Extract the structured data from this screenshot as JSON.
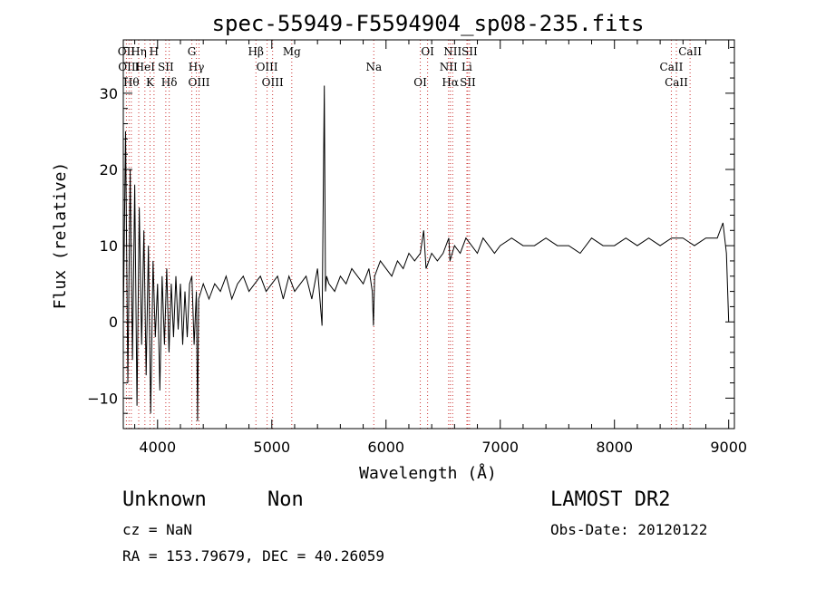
{
  "chart_data": {
    "type": "line",
    "title": "spec-55949-F5594904_sp08-235.fits",
    "xlabel": "Wavelength (Å)",
    "ylabel": "Flux (relative)",
    "xlim": [
      3700,
      9050
    ],
    "ylim": [
      -14,
      37
    ],
    "x_ticks": [
      4000,
      5000,
      6000,
      7000,
      8000,
      9000
    ],
    "y_ticks": [
      -10,
      0,
      10,
      20,
      30
    ],
    "grid": false,
    "series": [
      {
        "color": "#000000",
        "x": [
          3700,
          3720,
          3740,
          3760,
          3780,
          3800,
          3820,
          3840,
          3860,
          3880,
          3900,
          3920,
          3940,
          3960,
          3980,
          4000,
          4020,
          4040,
          4060,
          4080,
          4100,
          4120,
          4140,
          4160,
          4180,
          4200,
          4220,
          4240,
          4260,
          4280,
          4300,
          4320,
          4340,
          4350,
          4360,
          4380,
          4400,
          4450,
          4500,
          4550,
          4600,
          4650,
          4700,
          4750,
          4800,
          4850,
          4900,
          4950,
          5000,
          5050,
          5100,
          5150,
          5200,
          5250,
          5300,
          5350,
          5400,
          5440,
          5460,
          5470,
          5480,
          5500,
          5550,
          5600,
          5650,
          5700,
          5750,
          5800,
          5850,
          5880,
          5890,
          5900,
          5950,
          6000,
          6050,
          6100,
          6150,
          6200,
          6250,
          6300,
          6330,
          6350,
          6400,
          6450,
          6500,
          6550,
          6560,
          6600,
          6650,
          6700,
          6750,
          6800,
          6850,
          6900,
          6950,
          7000,
          7100,
          7200,
          7300,
          7400,
          7500,
          7600,
          7700,
          7800,
          7900,
          8000,
          8100,
          8200,
          8300,
          8400,
          8500,
          8600,
          8700,
          8800,
          8900,
          8950,
          8980,
          9000
        ],
        "y": [
          0,
          25,
          -8,
          20,
          -5,
          18,
          -11,
          15,
          -3,
          12,
          -7,
          10,
          -12,
          8,
          -2,
          5,
          -9,
          6,
          -3,
          7,
          -4,
          5,
          -2,
          6,
          -1,
          5,
          -3,
          4,
          -2,
          5,
          6,
          -3,
          4,
          -13,
          3,
          4,
          5,
          3,
          5,
          4,
          6,
          3,
          5,
          6,
          4,
          5,
          6,
          4,
          5,
          6,
          3,
          6,
          4,
          5,
          6,
          3,
          7,
          -0.5,
          31,
          4,
          6,
          5,
          4,
          6,
          5,
          7,
          6,
          5,
          7,
          4,
          -0.5,
          6,
          8,
          7,
          6,
          8,
          7,
          9,
          8,
          9,
          12,
          7,
          9,
          8,
          9,
          11,
          8,
          10,
          9,
          11,
          10,
          9,
          11,
          10,
          9,
          10,
          11,
          10,
          10,
          11,
          10,
          10,
          9,
          11,
          10,
          10,
          11,
          10,
          11,
          10,
          11,
          11,
          10,
          11,
          11,
          13,
          9,
          0
        ]
      }
    ],
    "line_marks": [
      {
        "x": 3727,
        "label": "OII"
      },
      {
        "x": 3750,
        "label": "OIII"
      },
      {
        "x": 3770,
        "label": "Hθ"
      },
      {
        "x": 3835,
        "label": "Hη"
      },
      {
        "x": 3889,
        "label": "HeI"
      },
      {
        "x": 3934,
        "label": "K"
      },
      {
        "x": 3969,
        "label": "H"
      },
      {
        "x": 4072,
        "label": "SII"
      },
      {
        "x": 4102,
        "label": "Hδ"
      },
      {
        "x": 4300,
        "label": "G"
      },
      {
        "x": 4340,
        "label": "Hγ"
      },
      {
        "x": 4363,
        "label": "OIII"
      },
      {
        "x": 4861,
        "label": "Hβ"
      },
      {
        "x": 4959,
        "label": "OIII"
      },
      {
        "x": 5007,
        "label": "OIII"
      },
      {
        "x": 5175,
        "label": "Mg"
      },
      {
        "x": 5893,
        "label": "Na"
      },
      {
        "x": 6300,
        "label": "OI"
      },
      {
        "x": 6364,
        "label": "OI"
      },
      {
        "x": 6548,
        "label": "NII"
      },
      {
        "x": 6563,
        "label": "Hα"
      },
      {
        "x": 6583,
        "label": "NII"
      },
      {
        "x": 6708,
        "label": "Li"
      },
      {
        "x": 6716,
        "label": "SII"
      },
      {
        "x": 6731,
        "label": "SII"
      },
      {
        "x": 8498,
        "label": "CaII"
      },
      {
        "x": 8542,
        "label": "CaII"
      },
      {
        "x": 8662,
        "label": "CaII"
      }
    ]
  },
  "info": {
    "class": "Unknown",
    "subclass": "Non",
    "survey": "LAMOST DR2",
    "cz": "cz = NaN",
    "obs_date": "Obs-Date: 20120122",
    "radec": "RA = 153.79679, DEC =  40.26059"
  },
  "colors": {
    "spectrum": "#000000",
    "line_marker": "#cc3333",
    "background": "#ffffff"
  }
}
